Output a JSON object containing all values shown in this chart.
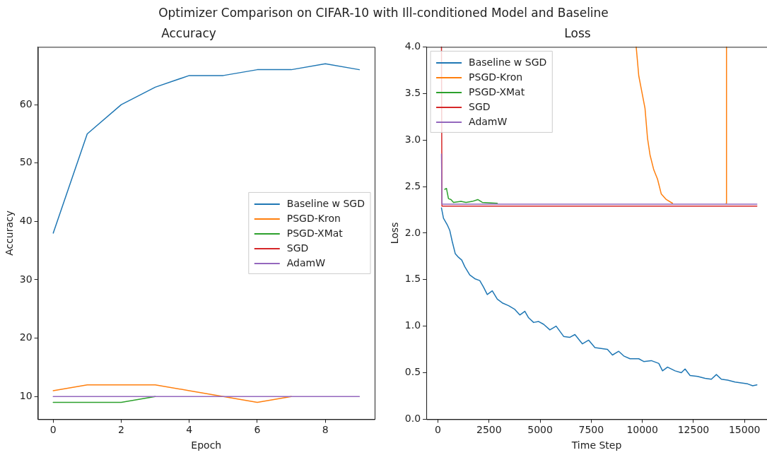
{
  "chart_data": [
    {
      "type": "other",
      "title": "Optimizer Comparison on CIFAR-10 with Ill-conditioned Model and Baseline"
    },
    {
      "type": "line",
      "title": "Accuracy",
      "xlabel": "Epoch",
      "ylabel": "Accuracy",
      "x": [
        0,
        1,
        2,
        3,
        4,
        5,
        6,
        7,
        8,
        9
      ],
      "xlim": [
        -0.45,
        9.45
      ],
      "xticks": [
        0,
        2,
        4,
        6,
        8
      ],
      "ylim": [
        6.1,
        69.9
      ],
      "yticks": [
        10,
        20,
        30,
        40,
        50,
        60
      ],
      "grid": false,
      "legend": "right",
      "marker": "none",
      "line_style": "solid",
      "series": [
        {
          "name": "Baseline w SGD",
          "color": "#1f77b4",
          "values": [
            38,
            55,
            60,
            63,
            65,
            65,
            66,
            66,
            67,
            66
          ]
        },
        {
          "name": "PSGD-Kron",
          "color": "#ff7f0e",
          "values": [
            11,
            12,
            12,
            12,
            11,
            10,
            9,
            10,
            null,
            null
          ]
        },
        {
          "name": "PSGD-XMat",
          "color": "#2ca02c",
          "values": [
            9,
            9,
            9,
            10,
            null,
            null,
            null,
            null,
            null,
            null
          ]
        },
        {
          "name": "SGD",
          "color": "#d62728",
          "values": [
            null,
            null,
            null,
            null,
            null,
            null,
            null,
            null,
            null,
            null
          ]
        },
        {
          "name": "AdamW",
          "color": "#9467bd",
          "values": [
            10,
            10,
            10,
            10,
            10,
            10,
            10,
            10,
            10,
            10
          ]
        }
      ]
    },
    {
      "type": "line",
      "title": "Loss",
      "xlabel": "Time Step",
      "ylabel": "Loss",
      "xlim": [
        -570,
        16100
      ],
      "xticks": [
        0,
        2500,
        5000,
        7500,
        10000,
        12500,
        15000
      ],
      "ylim": [
        0,
        4
      ],
      "yticks": [
        {
          "value": 0,
          "label": "0.0"
        },
        {
          "value": 0.5,
          "label": "0.5"
        },
        {
          "value": 1,
          "label": "1.0"
        },
        {
          "value": 1.5,
          "label": "1.5"
        },
        {
          "value": 2,
          "label": "2.0"
        },
        {
          "value": 2.5,
          "label": "2.5"
        },
        {
          "value": 3,
          "label": "3.0"
        },
        {
          "value": 3.5,
          "label": "3.5"
        },
        {
          "value": 4,
          "label": "4.0"
        }
      ],
      "grid": false,
      "legend": "top left",
      "marker": "none",
      "line_style": "solid",
      "series": [
        {
          "name": "Baseline w SGD",
          "color": "#1f77b4",
          "x": [
            172,
            270,
            453,
            576,
            698,
            845,
            1005,
            1164,
            1311,
            1556,
            1801,
            2046,
            2230,
            2413,
            2658,
            2903,
            3148,
            3455,
            3761,
            4006,
            4251,
            4435,
            4680,
            4925,
            5170,
            5476,
            5782,
            6150,
            6456,
            6701,
            7068,
            7375,
            7681,
            7987,
            8293,
            8538,
            8844,
            9090,
            9396,
            9825,
            10070,
            10437,
            10805,
            10988,
            11233,
            11601,
            11907,
            12091,
            12336,
            12703,
            13071,
            13377,
            13622,
            13867,
            14173,
            14541,
            14847,
            15153,
            15398,
            15606
          ],
          "values": [
            2.27,
            2.16,
            2.09,
            2.03,
            1.91,
            1.78,
            1.74,
            1.71,
            1.64,
            1.55,
            1.51,
            1.49,
            1.42,
            1.34,
            1.38,
            1.29,
            1.25,
            1.22,
            1.18,
            1.12,
            1.16,
            1.09,
            1.04,
            1.05,
            1.02,
            0.96,
            1.0,
            0.89,
            0.88,
            0.91,
            0.81,
            0.85,
            0.77,
            0.76,
            0.75,
            0.69,
            0.73,
            0.68,
            0.65,
            0.65,
            0.62,
            0.63,
            0.6,
            0.52,
            0.56,
            0.52,
            0.5,
            0.54,
            0.47,
            0.46,
            0.44,
            0.43,
            0.48,
            0.43,
            0.42,
            0.4,
            0.39,
            0.38,
            0.36,
            0.37
          ]
        },
        {
          "name": "PSGD-Kron",
          "color": "#ff7f0e",
          "x": [
            9700,
            9825,
            9947,
            10131,
            10253,
            10376,
            10560,
            10743,
            10927,
            11172,
            11478,
            12800,
            14100,
            14112,
            14125
          ],
          "values": [
            4.0,
            3.69,
            3.55,
            3.34,
            3.02,
            2.84,
            2.68,
            2.58,
            2.42,
            2.36,
            2.32,
            null,
            2.32,
            4.0,
            2.32
          ]
        },
        {
          "name": "PSGD-XMat",
          "color": "#2ca02c",
          "x": [
            331,
            416,
            514,
            637,
            760,
            1127,
            1372,
            1678,
            1948,
            2168,
            2903
          ],
          "values": [
            2.47,
            2.48,
            2.37,
            2.36,
            2.33,
            2.34,
            2.33,
            2.34,
            2.36,
            2.33,
            2.32
          ]
        },
        {
          "name": "SGD",
          "color": "#d62728",
          "x": [
            172,
            195,
            15606
          ],
          "values": [
            4.0,
            2.29,
            2.29
          ]
        },
        {
          "name": "AdamW",
          "color": "#9467bd",
          "x": [
            172,
            195,
            15606
          ],
          "values": [
            2.85,
            2.31,
            2.31
          ]
        }
      ]
    }
  ]
}
